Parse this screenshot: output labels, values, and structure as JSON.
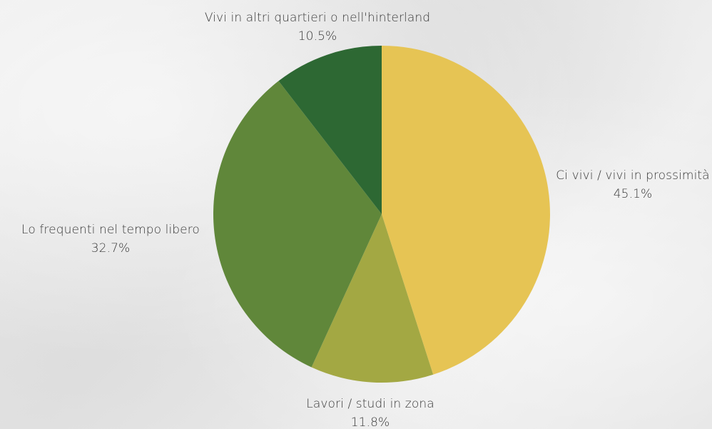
{
  "chart_data": {
    "type": "pie",
    "title": "",
    "start_angle_deg": 0,
    "direction": "clockwise",
    "slices": [
      {
        "label": "Ci vivi / vivi in prossimità",
        "value": 45.1,
        "value_label": "45.1%",
        "color": "#e6c454"
      },
      {
        "label": "Lavori / studi in zona",
        "value": 11.8,
        "value_label": "11.8%",
        "color": "#a3a843"
      },
      {
        "label": "Lo frequenti nel tempo libero",
        "value": 32.7,
        "value_label": "32.7%",
        "color": "#60873a"
      },
      {
        "label": "Vivi in altri quartieri o nell'hinterland",
        "value": 10.5,
        "value_label": "10.5%",
        "color": "#2d6833"
      }
    ]
  }
}
